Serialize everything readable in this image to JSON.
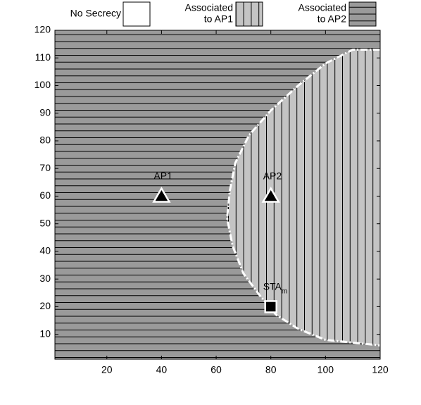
{
  "chart_data": {
    "type": "region",
    "xlim": [
      1,
      120
    ],
    "ylim": [
      1,
      120
    ],
    "xticks": [
      20,
      40,
      60,
      80,
      100,
      120
    ],
    "yticks": [
      10,
      20,
      30,
      40,
      50,
      60,
      70,
      80,
      90,
      100,
      110,
      120
    ],
    "background_color": "#9a9a9a",
    "region_color": "#c4c4c4",
    "legend": [
      {
        "name": [
          "No Secrecy"
        ],
        "pattern": "none"
      },
      {
        "name": [
          "Associated",
          "to AP1"
        ],
        "pattern": "vertical"
      },
      {
        "name": [
          "Associated",
          "to AP2"
        ],
        "pattern": "horizontal"
      }
    ],
    "boundary": {
      "x": [
        120,
        110,
        100,
        90,
        80,
        72,
        67,
        65,
        64,
        66,
        70,
        76,
        82,
        90,
        100,
        110,
        120
      ],
      "y": [
        113,
        113,
        108,
        100,
        91,
        82,
        72,
        62,
        52,
        42,
        32,
        24,
        17,
        12,
        8,
        7,
        6
      ]
    },
    "points": [
      {
        "label": "AP1",
        "x": 40,
        "y": 60,
        "marker": "triangle"
      },
      {
        "label": "AP2",
        "x": 80,
        "y": 60,
        "marker": "triangle"
      },
      {
        "label": "STA",
        "sub": "m",
        "x": 80,
        "y": 20,
        "marker": "square"
      }
    ]
  }
}
